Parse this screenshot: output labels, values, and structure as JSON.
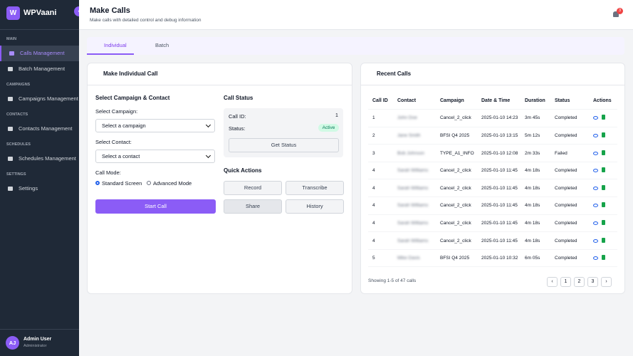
{
  "sidebar": {
    "brand_initial": "W",
    "brand": "WPVaani",
    "sections": [
      {
        "title": "MAIN",
        "items": [
          "Calls Management",
          "Batch Management"
        ]
      },
      {
        "title": "CAMPAIGNS",
        "items": [
          "Campaigns Management"
        ]
      },
      {
        "title": "CONTACTS",
        "items": [
          "Contacts Management"
        ]
      },
      {
        "title": "SCHEDULES",
        "items": [
          "Schedules Management"
        ]
      },
      {
        "title": "SETTINGS",
        "items": [
          "Settings"
        ]
      }
    ],
    "user": {
      "initials": "AJ",
      "name": "Admin User",
      "role": "Administrator"
    }
  },
  "header": {
    "title": "Make Calls",
    "subtitle": "Make calls with detailed control and debug information",
    "notification_count": "3"
  },
  "tabs": [
    "Individual",
    "Batch"
  ],
  "form": {
    "title": "Make Individual Call",
    "section_title": "Select Campaign & Contact",
    "campaign_label": "Select Campaign:",
    "campaign_placeholder": "Select a campaign",
    "contact_label": "Select Contact:",
    "contact_placeholder": "Select a contact",
    "mode_label": "Call Mode:",
    "modes": [
      "Standard Screen",
      "Advanced Mode"
    ],
    "start_button": "Start Call"
  },
  "call_status": {
    "title": "Call Status",
    "call_id_label": "Call ID:",
    "call_id": "1",
    "status_label": "Status:",
    "status": "Active",
    "button": "Get Status"
  },
  "quick_actions": {
    "title": "Quick Actions",
    "buttons": [
      "Record",
      "Transcribe",
      "Share",
      "History"
    ]
  },
  "recent_calls": {
    "title": "Recent Calls",
    "columns": [
      "Call ID",
      "Contact",
      "Campaign",
      "Date & Time",
      "Duration",
      "Status",
      "Actions"
    ],
    "rows": [
      [
        "1",
        "John Doe",
        "Cancel_2_click",
        "2025-01-10 14:23",
        "3m 45s",
        "Completed"
      ],
      [
        "2",
        "Jane Smith",
        "BFSI Q4 2025",
        "2025-01-10 13:15",
        "5m 12s",
        "Completed"
      ],
      [
        "3",
        "Bob Johnson",
        "TYPE_A1_INFO",
        "2025-01-10 12:08",
        "2m 33s",
        "Failed"
      ],
      [
        "4",
        "Sarah Williams",
        "Cancel_2_click",
        "2025-01-10 11:45",
        "4m 18s",
        "Completed"
      ],
      [
        "4",
        "Sarah Williams",
        "Cancel_2_click",
        "2025-01-10 11:45",
        "4m 18s",
        "Completed"
      ],
      [
        "4",
        "Sarah Williams",
        "Cancel_2_click",
        "2025-01-10 11:45",
        "4m 18s",
        "Completed"
      ],
      [
        "4",
        "Sarah Williams",
        "Cancel_2_click",
        "2025-01-10 11:45",
        "4m 18s",
        "Completed"
      ],
      [
        "4",
        "Sarah Williams",
        "Cancel_2_click",
        "2025-01-10 11:45",
        "4m 18s",
        "Completed"
      ],
      [
        "5",
        "Mike Davis",
        "BFSI Q4 2025",
        "2025-01-10 10:32",
        "6m 05s",
        "Completed"
      ]
    ],
    "footer": "Showing 1-5 of 47 calls",
    "pages": [
      "1",
      "2",
      "3"
    ]
  }
}
